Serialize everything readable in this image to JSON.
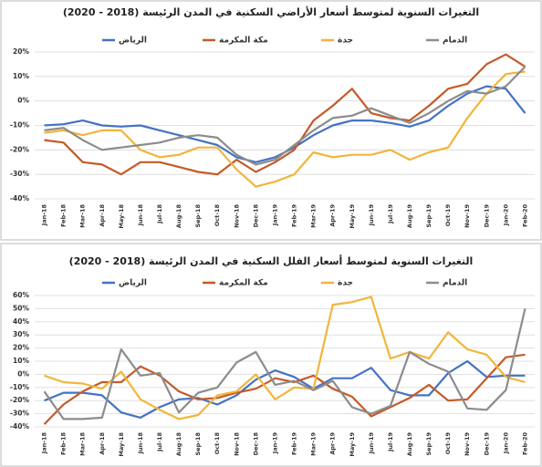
{
  "chart_data": [
    {
      "type": "line",
      "title": "التغيرات السنوية لمتوسط أسعار الأراضي السكنية في المدن الرئيسة (2018 - 2020)",
      "categories": [
        "Jan-18",
        "Feb-18",
        "Mar-18",
        "Apr-18",
        "May-18",
        "Jun-18",
        "Jul-18",
        "Aug-18",
        "Sep-18",
        "Oct-18",
        "Nov-18",
        "Dec-18",
        "Jan-19",
        "Feb-19",
        "Mar-19",
        "Apr-19",
        "May-19",
        "Jun-19",
        "Jul-19",
        "Aug-19",
        "Sep-19",
        "Oct-19",
        "Nov-19",
        "Dec-19",
        "Jan-20",
        "Feb-20"
      ],
      "series": [
        {
          "name": "الرياض",
          "color": "#4472c4",
          "values": [
            -10,
            -9.5,
            -8,
            -10,
            -10.5,
            -10,
            -12,
            -14,
            -16,
            -18,
            -23,
            -25,
            -23,
            -19,
            -14,
            -10,
            -8,
            -8,
            -9,
            -10.5,
            -8,
            -2,
            3,
            6,
            5,
            -5
          ]
        },
        {
          "name": "مكة المكرمة",
          "color": "#c55a28",
          "values": [
            -16,
            -17,
            -25,
            -26,
            -30,
            -25,
            -25,
            -27,
            -29,
            -30,
            -24,
            -29,
            -25,
            -20,
            -8,
            -2,
            5,
            -5,
            -7,
            -8,
            -2,
            5,
            7,
            15,
            19,
            14
          ]
        },
        {
          "name": "جدة",
          "color": "#f2b53a",
          "values": [
            -13,
            -12,
            -14,
            -12,
            -12,
            -20,
            -23,
            -22,
            -19,
            -19,
            -28,
            -35,
            -33,
            -30,
            -21,
            -23,
            -22,
            -22,
            -20,
            -24,
            -21,
            -19,
            -7,
            3,
            11,
            12
          ]
        },
        {
          "name": "الدمام",
          "color": "#8c8c8c",
          "values": [
            -12,
            -11,
            -16,
            -20,
            -19,
            -18,
            -17,
            -15,
            -14,
            -15,
            -22,
            -26,
            -24,
            -18,
            -12,
            -7,
            -6,
            -3,
            -6,
            -9,
            -5,
            0,
            4,
            3,
            6,
            14
          ]
        }
      ],
      "ylim": [
        -40,
        20
      ],
      "yticks": [
        {
          "value": -40,
          "label": "-40%"
        },
        {
          "value": -30,
          "label": "-30%"
        },
        {
          "value": -20,
          "label": "-20%"
        },
        {
          "value": -10,
          "label": "-10%"
        },
        {
          "value": 0,
          "label": "0%"
        },
        {
          "value": 10,
          "label": "10%"
        },
        {
          "value": 20,
          "label": "20%"
        }
      ],
      "grid": true
    },
    {
      "type": "line",
      "title": "التغيرات السنوية لمتوسط أسعار الفلل السكنية في المدن الرئيسة (2018 - 2020)",
      "categories": [
        "Jan-18",
        "Feb-18",
        "Mar-18",
        "Apr-18",
        "May-18",
        "Jun-18",
        "Jul-18",
        "Aug-18",
        "Sep-18",
        "Oct-18",
        "Nov-18",
        "Dec-18",
        "Jan-19",
        "Feb-19",
        "Mar-19",
        "Apr-19",
        "May-19",
        "Jun-19",
        "Jul-19",
        "Aug-19",
        "Sep-19",
        "Oct-19",
        "Nov-19",
        "Dec-19",
        "Jan-20",
        "Feb-20"
      ],
      "series": [
        {
          "name": "الرياض",
          "color": "#4472c4",
          "values": [
            -20,
            -14,
            -14,
            -16,
            -29,
            -33,
            -25,
            -19,
            -18,
            -23,
            -16,
            -4,
            3,
            -2,
            -11,
            -3,
            -3,
            5,
            -12,
            -16,
            -16,
            1,
            10,
            -2,
            -1,
            -1
          ]
        },
        {
          "name": "مكة المكرمة",
          "color": "#c55a28",
          "values": [
            -38,
            -23,
            -13,
            -6,
            -6,
            6,
            -1,
            -13,
            -19,
            -18,
            -14,
            -11,
            -3,
            -6,
            -1,
            -11,
            -17,
            -32,
            -25,
            -18,
            -8,
            -20,
            -19,
            -3,
            13,
            15
          ]
        },
        {
          "name": "جدة",
          "color": "#f2b53a",
          "values": [
            -1,
            -6,
            -7,
            -11,
            2,
            -19,
            -27,
            -34,
            -31,
            -16,
            -13,
            0,
            -19,
            -10,
            -11,
            53,
            55,
            59,
            12,
            17,
            12,
            32,
            19,
            15,
            -2,
            -6
          ]
        },
        {
          "name": "الدمام",
          "color": "#8c8c8c",
          "values": [
            -13,
            -34,
            -34,
            -33,
            19,
            -1,
            1,
            -29,
            -14,
            -10,
            9,
            17,
            -8,
            -5,
            -12,
            -5,
            -25,
            -30,
            -24,
            17,
            8,
            2,
            -26,
            -27,
            -12,
            50
          ]
        }
      ],
      "ylim": [
        -40,
        60
      ],
      "yticks": [
        {
          "value": -40,
          "label": "-40%"
        },
        {
          "value": -30,
          "label": "-30%"
        },
        {
          "value": -20,
          "label": "-20%"
        },
        {
          "value": -10,
          "label": "-10%"
        },
        {
          "value": 0,
          "label": "0%"
        },
        {
          "value": 10,
          "label": "10%"
        },
        {
          "value": 20,
          "label": "20%"
        },
        {
          "value": 30,
          "label": "30%"
        },
        {
          "value": 40,
          "label": "40%"
        },
        {
          "value": 50,
          "label": "50%"
        },
        {
          "value": 60,
          "label": "60%"
        }
      ],
      "grid": true
    }
  ]
}
